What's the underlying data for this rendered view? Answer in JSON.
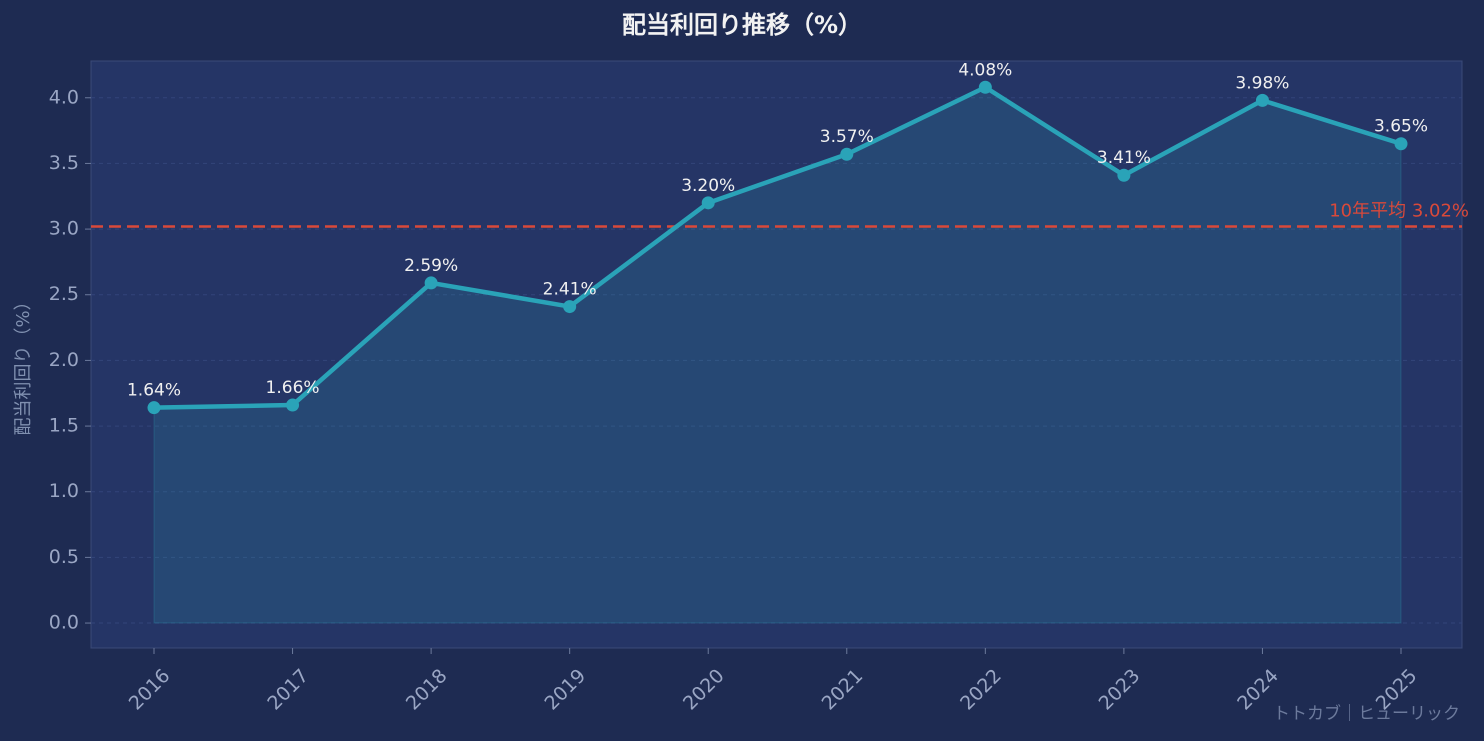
{
  "chart_data": {
    "type": "line",
    "title": "配当利回り推移（%）",
    "y_label": "配当利回り（%）",
    "categories": [
      "2016",
      "2017",
      "2018",
      "2019",
      "2020",
      "2021",
      "2022",
      "2023",
      "2024",
      "2025"
    ],
    "values": [
      1.64,
      1.66,
      2.59,
      2.41,
      3.2,
      3.57,
      4.08,
      3.41,
      3.98,
      3.65
    ],
    "value_labels": [
      "1.64%",
      "1.66%",
      "2.59%",
      "2.41%",
      "3.20%",
      "3.57%",
      "4.08%",
      "3.41%",
      "3.98%",
      "3.65%"
    ],
    "color": "#2aa3b8",
    "average": 3.02,
    "average_label": "10年平均 3.02%",
    "average_color": "#d9493a",
    "ylim": [
      -0.19,
      4.28
    ],
    "yticks": [
      {
        "value": 0,
        "label": "0.0"
      },
      0.5,
      {
        "value": 1,
        "label": "1.0"
      },
      1.5,
      {
        "value": 2,
        "label": "2.0"
      },
      2.5,
      {
        "value": 3,
        "label": "3.0"
      },
      3.5,
      {
        "value": 4,
        "label": "4.0"
      }
    ],
    "grid": true,
    "watermark": "トトカブ｜ヒューリック"
  }
}
